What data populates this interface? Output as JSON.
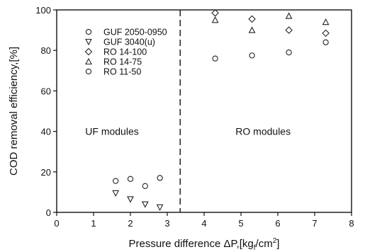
{
  "chart_data": {
    "type": "scatter",
    "xlabel": "Pressure difference ΔP,[kg",
    "xlabel_sub": "f",
    "xlabel_tail": "/cm",
    "xlabel_sup": "2",
    "xlabel_end": "]",
    "ylabel": "COD removal efficiency,[%]",
    "xlim": [
      0,
      8
    ],
    "ylim": [
      0,
      100
    ],
    "x_ticks": [
      "0",
      "1",
      "2",
      "3",
      "4",
      "5",
      "6",
      "7",
      "8"
    ],
    "y_ticks": [
      "0",
      "20",
      "40",
      "60",
      "80",
      "100"
    ],
    "grid": false,
    "legend_position": "top-left",
    "divider_x": 3.35,
    "annotations": [
      {
        "text": "UF modules",
        "x": 1.5,
        "y": 40
      },
      {
        "text": "RO modules",
        "x": 5.6,
        "y": 40
      }
    ],
    "series": [
      {
        "name": "GUF 2050-0950",
        "marker": "circle",
        "points": [
          [
            1.6,
            15.5
          ],
          [
            2.0,
            16.5
          ],
          [
            2.4,
            13.0
          ],
          [
            2.8,
            17.0
          ]
        ]
      },
      {
        "name": "GUF 3040(u)",
        "marker": "triangle-down",
        "points": [
          [
            1.6,
            9.5
          ],
          [
            2.0,
            6.5
          ],
          [
            2.4,
            4.0
          ],
          [
            2.8,
            2.5
          ]
        ]
      },
      {
        "name": "RO 14-100",
        "marker": "diamond",
        "points": [
          [
            4.3,
            98.5
          ],
          [
            5.3,
            95.5
          ],
          [
            6.3,
            90.0
          ],
          [
            7.3,
            88.5
          ]
        ]
      },
      {
        "name": "RO 14-75",
        "marker": "triangle-up",
        "points": [
          [
            4.3,
            95.0
          ],
          [
            5.3,
            90.0
          ],
          [
            6.3,
            97.0
          ],
          [
            7.3,
            94.0
          ]
        ]
      },
      {
        "name": "RO 11-50",
        "marker": "circle",
        "points": [
          [
            4.3,
            76.0
          ],
          [
            5.3,
            77.5
          ],
          [
            6.3,
            79.0
          ],
          [
            7.3,
            84.0
          ]
        ]
      }
    ]
  }
}
